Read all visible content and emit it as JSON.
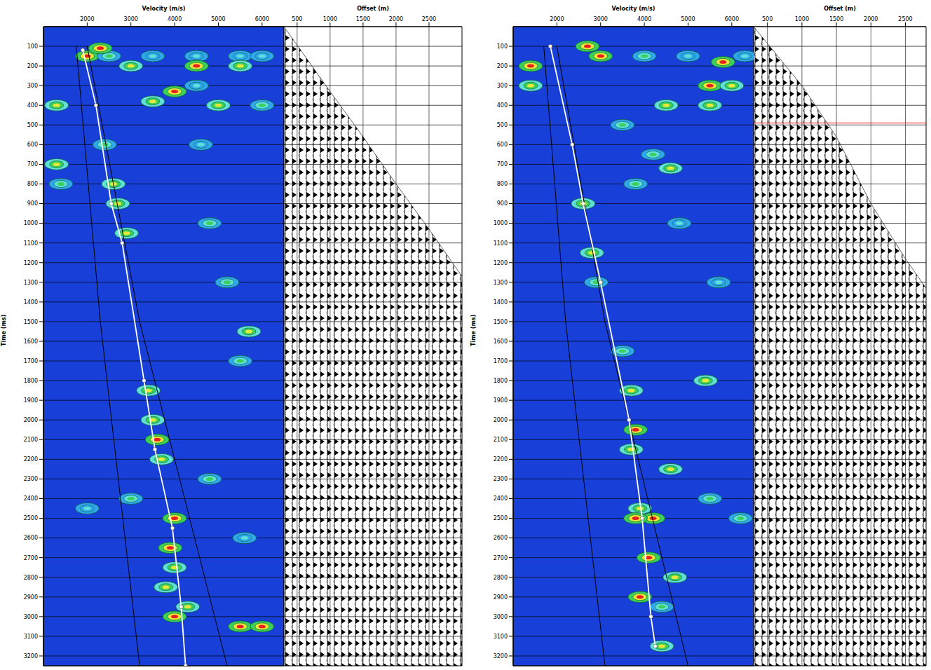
{
  "chart_data": [
    {
      "type": "heatmap",
      "x_label": "Velocity (m/s)",
      "y_label": "Time (ms)",
      "xlim": [
        1000,
        6500
      ],
      "xticks": [
        2000,
        3000,
        4000,
        5000,
        6000
      ],
      "ylim": [
        0,
        3250
      ],
      "yticks": [
        100,
        200,
        300,
        400,
        500,
        600,
        700,
        800,
        900,
        1000,
        1100,
        1200,
        1300,
        1400,
        1500,
        1600,
        1700,
        1800,
        1900,
        2000,
        2100,
        2200,
        2300,
        2400,
        2500,
        2600,
        2700,
        2800,
        2900,
        3000,
        3100,
        3200
      ],
      "grid": true,
      "color_range": [
        0,
        1
      ],
      "cells": [
        [
          2000,
          150,
          0.9
        ],
        [
          2500,
          150,
          0.6
        ],
        [
          3500,
          150,
          0.5
        ],
        [
          4500,
          150,
          0.5
        ],
        [
          5500,
          150,
          0.5
        ],
        [
          6000,
          150,
          0.5
        ],
        [
          4500,
          200,
          0.9
        ],
        [
          5500,
          200,
          0.8
        ],
        [
          3000,
          200,
          0.7
        ],
        [
          4000,
          330,
          0.9
        ],
        [
          3500,
          380,
          0.7
        ],
        [
          5000,
          400,
          0.7
        ],
        [
          6000,
          400,
          0.6
        ],
        [
          4500,
          300,
          0.5
        ],
        [
          2300,
          110,
          0.9
        ],
        [
          2400,
          600,
          0.6
        ],
        [
          2600,
          800,
          0.8
        ],
        [
          2700,
          900,
          0.7
        ],
        [
          2900,
          1050,
          0.8
        ],
        [
          3400,
          1850,
          0.8
        ],
        [
          3500,
          2000,
          0.7
        ],
        [
          3600,
          2100,
          0.9
        ],
        [
          3700,
          2200,
          0.8
        ],
        [
          4000,
          2500,
          0.9
        ],
        [
          3900,
          2650,
          0.9
        ],
        [
          4000,
          2750,
          0.8
        ],
        [
          3800,
          2850,
          0.8
        ],
        [
          4300,
          2950,
          0.7
        ],
        [
          4000,
          3000,
          0.9
        ],
        [
          1300,
          400,
          0.8
        ],
        [
          1300,
          700,
          0.8
        ],
        [
          1400,
          800,
          0.6
        ],
        [
          5700,
          1550,
          0.8
        ],
        [
          5500,
          1700,
          0.6
        ],
        [
          5200,
          1300,
          0.6
        ],
        [
          4800,
          1000,
          0.6
        ],
        [
          4600,
          600,
          0.5
        ],
        [
          3000,
          2400,
          0.6
        ],
        [
          2000,
          2450,
          0.5
        ],
        [
          5500,
          3050,
          0.9
        ],
        [
          6000,
          3050,
          0.9
        ],
        [
          4800,
          2300,
          0.6
        ],
        [
          5600,
          2600,
          0.5
        ]
      ],
      "picks": {
        "x": [
          1900,
          2200,
          2550,
          2800,
          3300,
          3550,
          3950,
          4150,
          4250
        ],
        "y": [
          120,
          400,
          900,
          1100,
          1800,
          2150,
          2550,
          2950,
          3250
        ],
        "color": "#ffffff",
        "marker": "circle"
      },
      "guides": [
        {
          "x": [
            1750,
            2300,
            3200
          ],
          "y": [
            100,
            1500,
            3250
          ],
          "color": "#000000",
          "line_style": "solid"
        },
        {
          "x": [
            2000,
            3200,
            5200
          ],
          "y": [
            100,
            1500,
            3250
          ],
          "color": "#000000",
          "line_style": "solid"
        }
      ]
    },
    {
      "type": "area",
      "x_label": "Offset (m)",
      "xlim": [
        300,
        3000
      ],
      "xticks": [
        500,
        1000,
        1500,
        2000,
        2500
      ],
      "ylim": [
        0,
        3250
      ],
      "yticks": [
        100,
        200,
        300,
        400,
        500,
        600,
        700,
        800,
        900,
        1000,
        1100,
        1200,
        1300,
        1400,
        1500,
        1600,
        1700,
        1800,
        1900,
        2000,
        2100,
        2200,
        2300,
        2400,
        2500,
        2600,
        2700,
        2800,
        2900,
        3000,
        3100,
        3200
      ],
      "grid": true,
      "tick_labels": "x",
      "mute": {
        "x": [
          300,
          1000,
          1500,
          2000,
          2500,
          3000
        ],
        "y": [
          0,
          330,
          560,
          800,
          1030,
          1270
        ]
      }
    },
    {
      "type": "heatmap",
      "x_label": "Velocity (m/s)",
      "y_label": "Time (ms)",
      "xlim": [
        1000,
        6500
      ],
      "xticks": [
        2000,
        3000,
        4000,
        5000,
        6000
      ],
      "ylim": [
        0,
        3250
      ],
      "yticks": [
        100,
        200,
        300,
        400,
        500,
        600,
        700,
        800,
        900,
        1000,
        1100,
        1200,
        1300,
        1400,
        1500,
        1600,
        1700,
        1800,
        1900,
        2000,
        2100,
        2200,
        2300,
        2400,
        2500,
        2600,
        2700,
        2800,
        2900,
        3000,
        3100,
        3200
      ],
      "grid": true,
      "color_range": [
        0,
        1
      ],
      "cells": [
        [
          5800,
          180,
          0.9
        ],
        [
          5500,
          300,
          0.9
        ],
        [
          6000,
          300,
          0.8
        ],
        [
          3000,
          150,
          0.9
        ],
        [
          2700,
          100,
          0.9
        ],
        [
          4000,
          150,
          0.6
        ],
        [
          5000,
          150,
          0.5
        ],
        [
          6300,
          150,
          0.5
        ],
        [
          1400,
          200,
          0.9
        ],
        [
          1400,
          300,
          0.8
        ],
        [
          4500,
          400,
          0.8
        ],
        [
          5500,
          400,
          0.8
        ],
        [
          3500,
          500,
          0.6
        ],
        [
          4200,
          650,
          0.6
        ],
        [
          3800,
          800,
          0.6
        ],
        [
          4600,
          720,
          0.8
        ],
        [
          2600,
          900,
          0.7
        ],
        [
          2800,
          1150,
          0.7
        ],
        [
          2900,
          1300,
          0.6
        ],
        [
          3500,
          1650,
          0.6
        ],
        [
          3700,
          1850,
          0.7
        ],
        [
          3800,
          2050,
          0.9
        ],
        [
          3700,
          2150,
          0.8
        ],
        [
          4600,
          2250,
          0.7
        ],
        [
          3900,
          2450,
          0.8
        ],
        [
          4200,
          2500,
          0.9
        ],
        [
          3800,
          2500,
          0.9
        ],
        [
          4100,
          2700,
          0.9
        ],
        [
          4700,
          2800,
          0.8
        ],
        [
          3900,
          2900,
          0.9
        ],
        [
          4400,
          2950,
          0.6
        ],
        [
          5500,
          2400,
          0.6
        ],
        [
          6200,
          2500,
          0.6
        ],
        [
          5400,
          1800,
          0.7
        ],
        [
          5700,
          1300,
          0.5
        ],
        [
          4800,
          1000,
          0.5
        ],
        [
          4400,
          3150,
          0.7
        ]
      ],
      "picks": {
        "x": [
          1850,
          2350,
          2600,
          3000,
          3650,
          3950,
          4150,
          4250
        ],
        "y": [
          100,
          600,
          900,
          1300,
          2000,
          2500,
          3000,
          3150
        ],
        "color": "#ffffff",
        "marker": "circle"
      },
      "guides": [
        {
          "x": [
            1700,
            2200,
            3100
          ],
          "y": [
            100,
            1500,
            3250
          ],
          "color": "#000000",
          "line_style": "solid"
        },
        {
          "x": [
            2000,
            3100,
            5000
          ],
          "y": [
            100,
            1500,
            3250
          ],
          "color": "#000000",
          "line_style": "solid"
        }
      ]
    },
    {
      "type": "area",
      "x_label": "Offset (m)",
      "xlim": [
        300,
        2800
      ],
      "xticks": [
        500,
        1000,
        1500,
        2000,
        2500
      ],
      "ylim": [
        0,
        3250
      ],
      "yticks": [
        100,
        200,
        300,
        400,
        500,
        600,
        700,
        800,
        900,
        1000,
        1100,
        1200,
        1300,
        1400,
        1500,
        1600,
        1700,
        1800,
        1900,
        2000,
        2100,
        2200,
        2300,
        2400,
        2500,
        2600,
        2700,
        2800,
        2900,
        3000,
        3100,
        3200
      ],
      "grid": true,
      "tick_labels": "x",
      "mute": {
        "x": [
          300,
          1000,
          1500,
          2000,
          2500,
          2800
        ],
        "y": [
          0,
          300,
          560,
          900,
          1180,
          1330
        ]
      },
      "reference_line": {
        "y": 490,
        "color": "#ff0000"
      }
    }
  ]
}
